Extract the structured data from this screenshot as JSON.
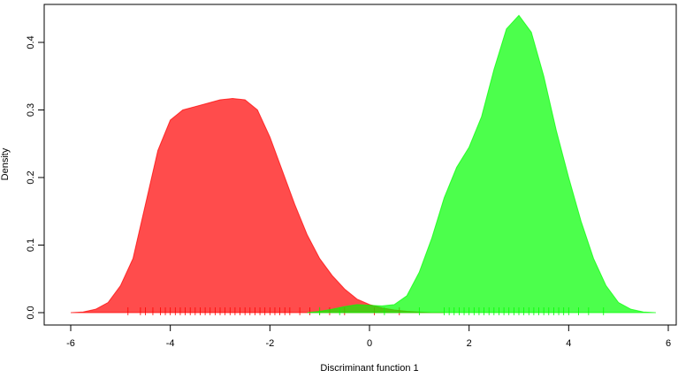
{
  "chart_data": {
    "type": "area",
    "x_label": "Discriminant function 1",
    "y_label": "Density",
    "x": [
      -6,
      -5.75,
      -5.5,
      -5.25,
      -5,
      -4.75,
      -4.5,
      -4.25,
      -4,
      -3.75,
      -3.5,
      -3.25,
      -3,
      -2.75,
      -2.5,
      -2.25,
      -2,
      -1.75,
      -1.5,
      -1.25,
      -1,
      -0.75,
      -0.5,
      -0.25,
      0,
      0.25,
      0.5,
      0.75,
      1,
      1.25,
      1.5,
      1.75,
      2,
      2.25,
      2.5,
      2.75,
      3,
      3.25,
      3.5,
      3.75,
      4,
      4.25,
      4.5,
      4.75,
      5,
      5.25,
      5.5,
      5.75
    ],
    "series": [
      {
        "color": "#ff0000",
        "values": [
          0,
          0.001,
          0.005,
          0.015,
          0.04,
          0.08,
          0.16,
          0.24,
          0.285,
          0.3,
          0.305,
          0.31,
          0.315,
          0.317,
          0.315,
          0.3,
          0.26,
          0.21,
          0.16,
          0.115,
          0.08,
          0.055,
          0.035,
          0.02,
          0.012,
          0.007,
          0.004,
          0.002,
          0.001,
          0,
          0,
          null,
          null,
          null,
          null,
          null,
          null,
          null,
          null,
          null,
          null,
          null,
          null,
          null,
          null,
          null,
          null,
          null
        ],
        "rug": [
          -4.85,
          -4.6,
          -4.5,
          -4.35,
          -4.2,
          -4.1,
          -4.0,
          -3.9,
          -3.8,
          -3.7,
          -3.6,
          -3.5,
          -3.4,
          -3.3,
          -3.2,
          -3.1,
          -3.0,
          -2.9,
          -2.8,
          -2.7,
          -2.6,
          -2.5,
          -2.4,
          -2.3,
          -2.2,
          -2.1,
          -2.0,
          -1.9,
          -1.8,
          -1.7,
          -1.6,
          -1.4,
          -1.2,
          -1.0,
          -0.8,
          -0.5,
          0.1,
          0.6
        ]
      },
      {
        "color": "#00ff00",
        "values": [
          null,
          null,
          null,
          null,
          null,
          null,
          null,
          null,
          null,
          null,
          null,
          null,
          null,
          null,
          null,
          null,
          null,
          null,
          null,
          0,
          0.002,
          0.005,
          0.009,
          0.012,
          0.011,
          0.01,
          0.012,
          0.025,
          0.06,
          0.11,
          0.17,
          0.215,
          0.245,
          0.29,
          0.36,
          0.42,
          0.44,
          0.415,
          0.35,
          0.27,
          0.2,
          0.135,
          0.08,
          0.04,
          0.015,
          0.005,
          0.001,
          0
        ],
        "rug": [
          -1.0,
          -0.6,
          0.3,
          1.0,
          1.5,
          1.6,
          1.7,
          1.8,
          1.9,
          2.0,
          2.1,
          2.2,
          2.3,
          2.4,
          2.5,
          2.6,
          2.7,
          2.8,
          2.9,
          3.0,
          3.1,
          3.2,
          3.3,
          3.4,
          3.5,
          3.6,
          3.7,
          3.8,
          3.9,
          4.0,
          4.2,
          4.4,
          4.7
        ]
      }
    ],
    "opacity": 0.7,
    "xlim": [
      -6,
      6
    ],
    "xticks": [
      -6,
      -4,
      -2,
      0,
      2,
      4,
      6
    ],
    "ylim": [
      0,
      0.4
    ],
    "yticks": [
      {
        "value": 0,
        "label": "0.0"
      },
      {
        "value": 0.1,
        "label": "0.1"
      },
      {
        "value": 0.2,
        "label": "0.2"
      },
      {
        "value": 0.3,
        "label": "0.3"
      },
      {
        "value": 0.4,
        "label": "0.4"
      }
    ]
  }
}
